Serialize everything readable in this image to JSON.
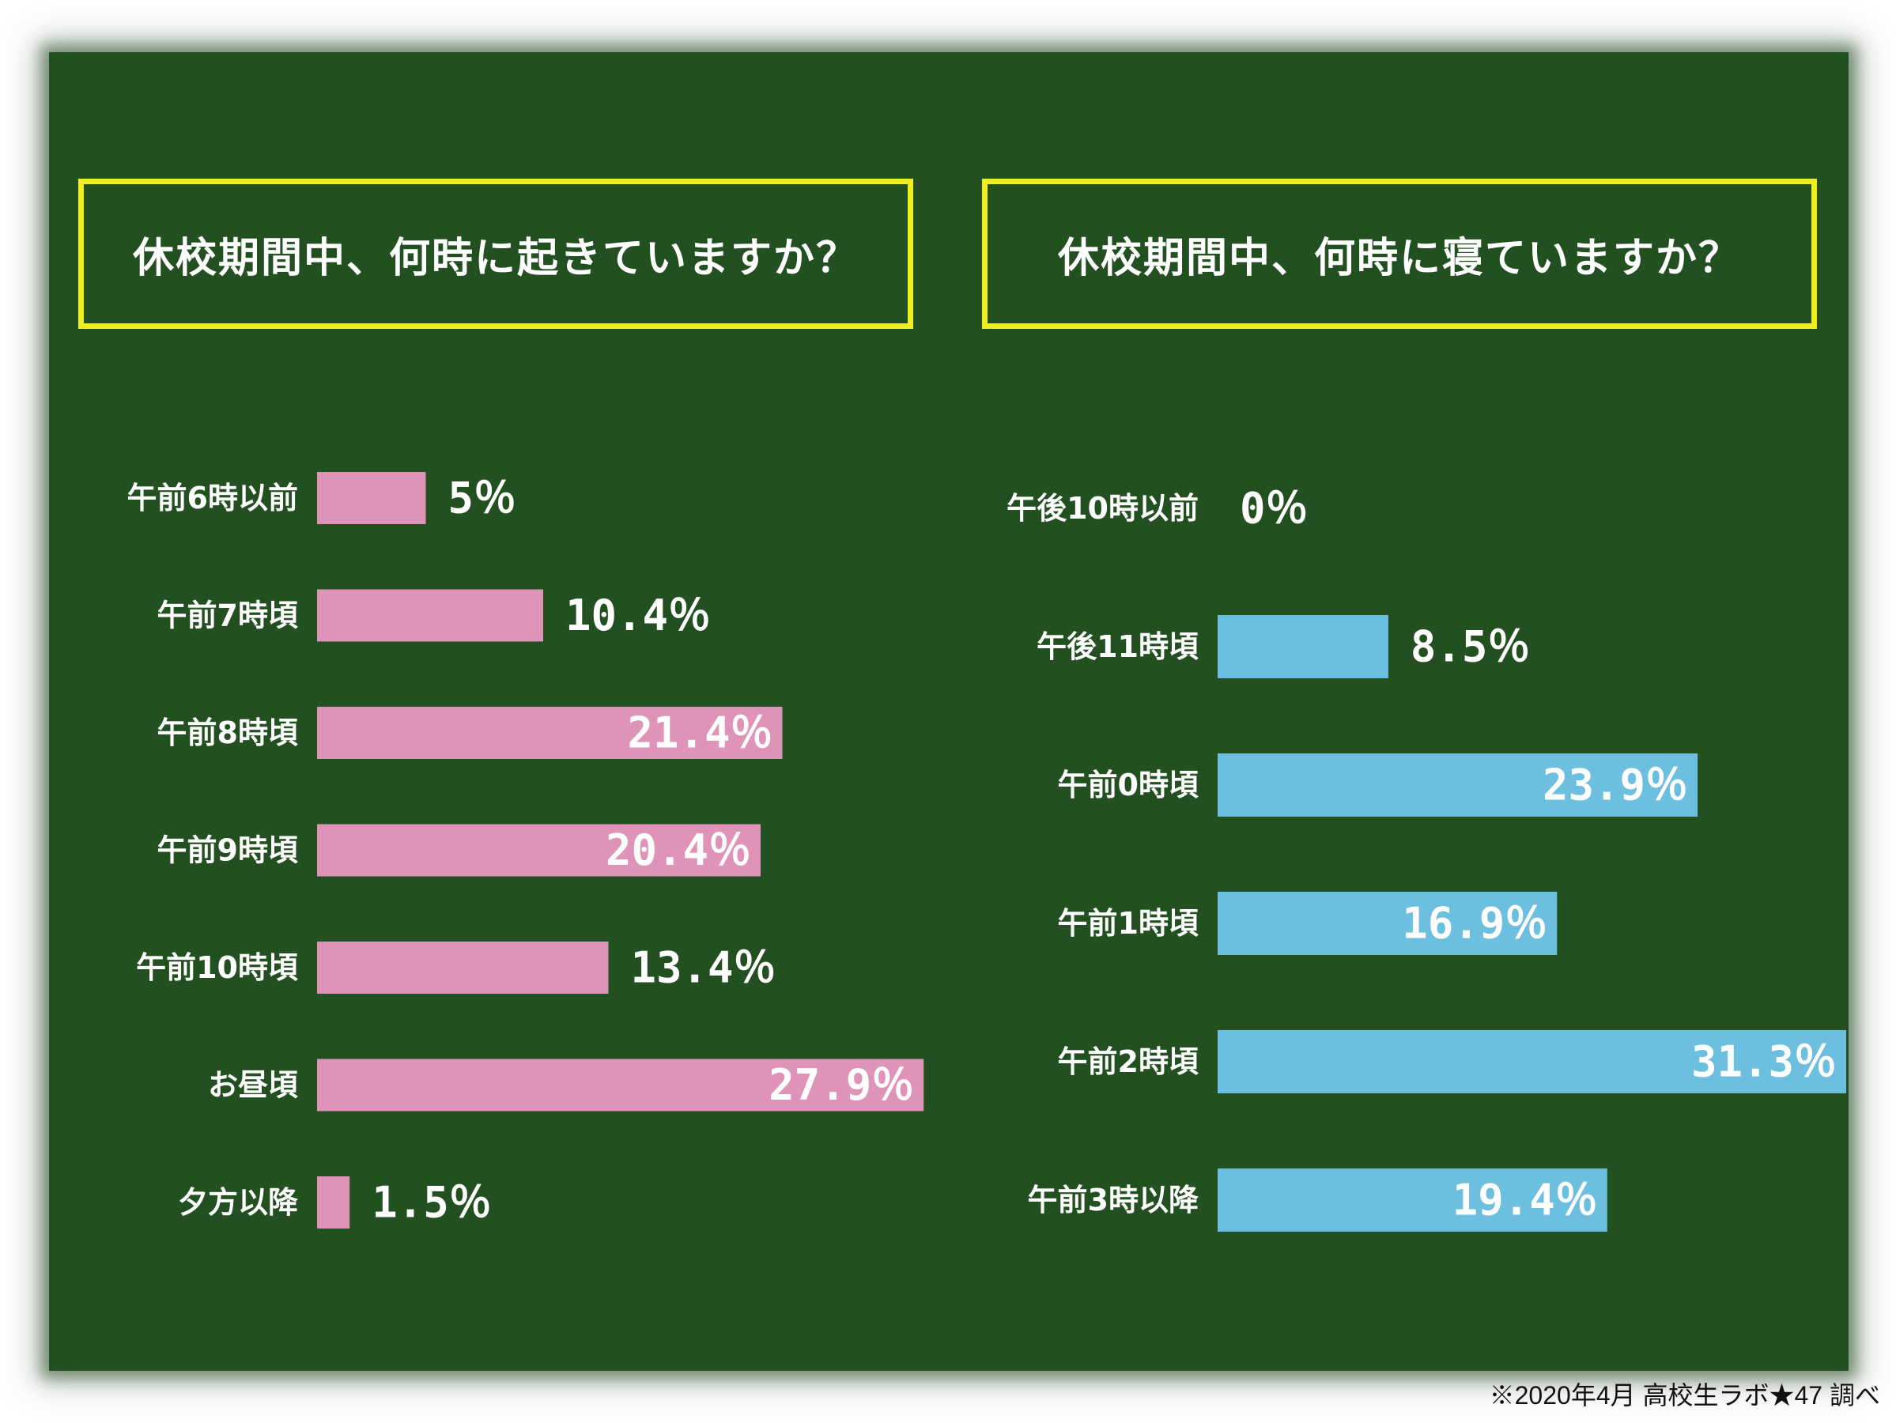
{
  "colors": {
    "board": "#235020",
    "title_border": "#f0ee1e",
    "wake_bar": "#e093b8",
    "sleep_bar": "#6dbfe0",
    "text": "#ffffff"
  },
  "footnote": "※2020年4月 高校生ラボ★47 調べ",
  "chart_data": [
    {
      "type": "bar",
      "orientation": "horizontal",
      "title": "休校期間中、何時に起きていますか？",
      "categories": [
        "午前6時以前",
        "午前7時頃",
        "午前8時頃",
        "午前9時頃",
        "午前10時頃",
        "お昼頃",
        "夕方以降"
      ],
      "values": [
        5,
        10.4,
        21.4,
        20.4,
        13.4,
        27.9,
        1.5
      ],
      "labels": [
        "5％",
        "10.4％",
        "21.4％",
        "20.4％",
        "13.4％",
        "27.9％",
        "1.5％"
      ],
      "label_inside": [
        false,
        false,
        true,
        true,
        false,
        true,
        false
      ],
      "unit": "%"
    },
    {
      "type": "bar",
      "orientation": "horizontal",
      "title": "休校期間中、何時に寝ていますか？",
      "categories": [
        "午後10時以前",
        "午後11時頃",
        "午前0時頃",
        "午前1時頃",
        "午前2時頃",
        "午前3時以降"
      ],
      "values": [
        0,
        8.5,
        23.9,
        16.9,
        31.3,
        19.4
      ],
      "labels": [
        "0％",
        "8.5％",
        "23.9％",
        "16.9％",
        "31.3％",
        "19.4％"
      ],
      "label_inside": [
        false,
        false,
        true,
        true,
        true,
        true
      ],
      "unit": "%"
    }
  ]
}
